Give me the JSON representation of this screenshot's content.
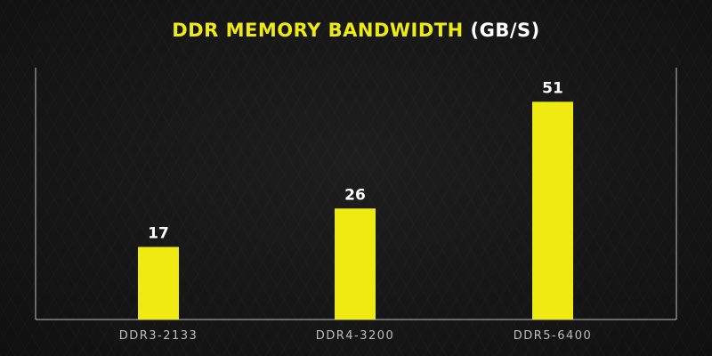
{
  "chart_data": {
    "type": "bar",
    "title_main": "DDR MEMORY BANDWIDTH",
    "title_unit": "(GB/S)",
    "categories": [
      "DDR3-2133",
      "DDR4-3200",
      "DDR5-6400"
    ],
    "values": [
      17,
      26,
      51
    ],
    "xlabel": "",
    "ylabel": "",
    "ylim": [
      0,
      59
    ],
    "grid": false,
    "bar_color": "#eeea12",
    "axis_color": "#bdbdbd",
    "label_color": "#ffffff",
    "tick_color": "#bdbdbd"
  }
}
